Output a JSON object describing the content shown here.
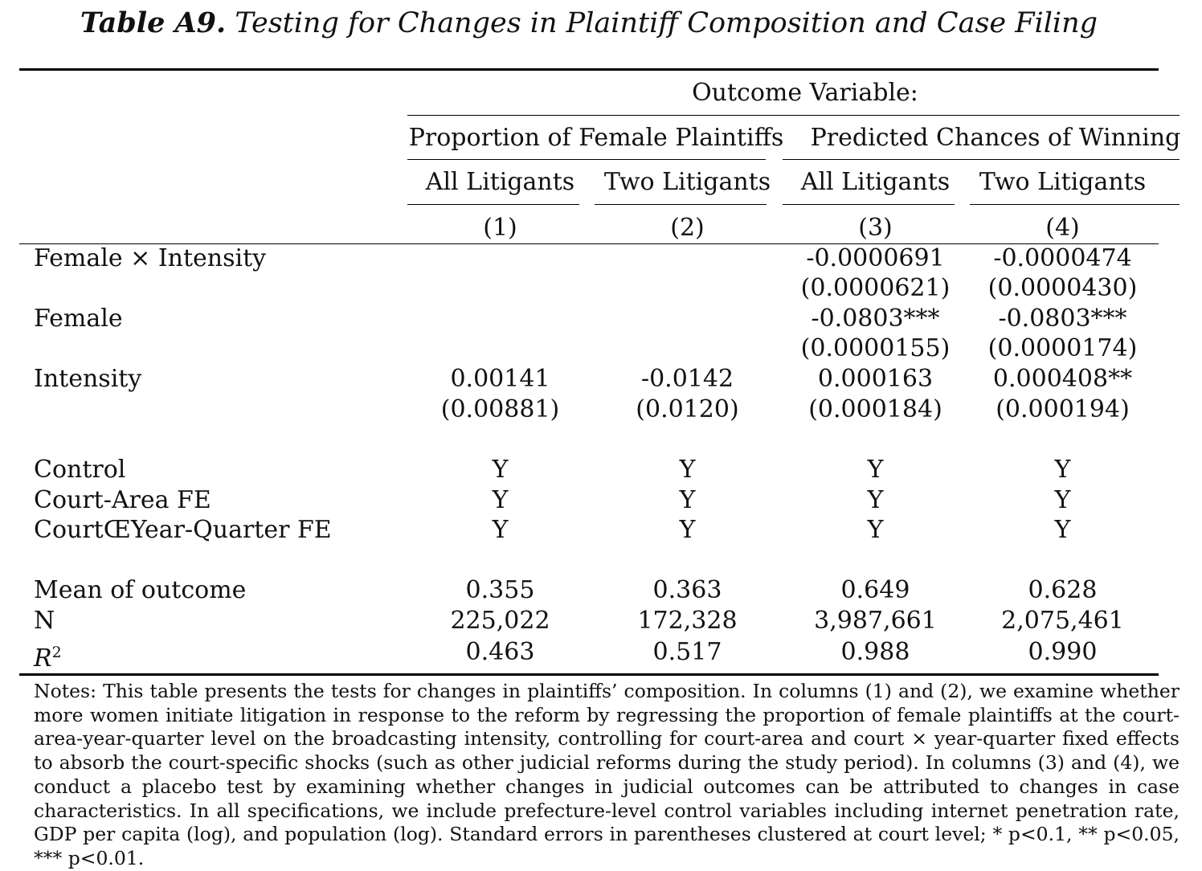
{
  "title": {
    "label": "Table A9.",
    "text": "Testing for Changes in Plaintiff Composition and Case Filing"
  },
  "header": {
    "outcome_variable": "Outcome Variable:",
    "groups": [
      "Proportion of Female Plaintiffs",
      "Predicted Chances of Winning"
    ],
    "subgroups": [
      "All Litigants",
      "Two Litigants",
      "All Litigants",
      "Two Litigants"
    ],
    "column_numbers": [
      "(1)",
      "(2)",
      "(3)",
      "(4)"
    ]
  },
  "rows": {
    "female_x_intensity": {
      "label": "Female × Intensity",
      "coef": [
        "",
        "",
        "-0.0000691",
        "-0.0000474"
      ],
      "se": [
        "",
        "",
        "(0.0000621)",
        "(0.0000430)"
      ]
    },
    "female": {
      "label": "Female",
      "coef": [
        "",
        "",
        "-0.0803***",
        "-0.0803***"
      ],
      "se": [
        "",
        "",
        "(0.0000155)",
        "(0.0000174)"
      ]
    },
    "intensity": {
      "label": "Intensity",
      "coef": [
        "0.00141",
        "-0.0142",
        "0.000163",
        "0.000408**"
      ],
      "se": [
        "(0.00881)",
        "(0.0120)",
        "(0.000184)",
        "(0.000194)"
      ]
    },
    "control": {
      "label": "Control",
      "values": [
        "Y",
        "Y",
        "Y",
        "Y"
      ]
    },
    "court_area_fe": {
      "label": "Court-Area FE",
      "values": [
        "Y",
        "Y",
        "Y",
        "Y"
      ]
    },
    "court_year_quarter_fe": {
      "label": "CourtŒYear-Quarter FE",
      "values": [
        "Y",
        "Y",
        "Y",
        "Y"
      ]
    },
    "mean_outcome": {
      "label": "Mean of outcome",
      "values": [
        "0.355",
        "0.363",
        "0.649",
        "0.628"
      ]
    },
    "n": {
      "label": "N",
      "values": [
        "225,022",
        "172,328",
        "3,987,661",
        "2,075,461"
      ]
    },
    "r2": {
      "label": "R",
      "label_sup": "2",
      "values": [
        "0.463",
        "0.517",
        "0.988",
        "0.990"
      ]
    }
  },
  "notes": "Notes: This table presents the tests for changes in plaintiffs’ composition. In columns (1) and (2), we examine whether more women initiate litigation in response to the reform by regressing the proportion of female plaintiffs at the court-area-year-quarter level on the broadcasting intensity, controlling for court-area and court × year-quarter fixed effects to absorb the court-specific shocks (such as other judicial reforms during the study period). In columns (3) and (4), we conduct a placebo test by examining whether changes in judicial outcomes can be attributed to changes in case characteristics. In all specifications, we include prefecture-level control variables including internet penetration rate, GDP per capita (log), and population (log). Standard errors in parentheses clustered at court level; * p<0.1, ** p<0.05, *** p<0.01."
}
